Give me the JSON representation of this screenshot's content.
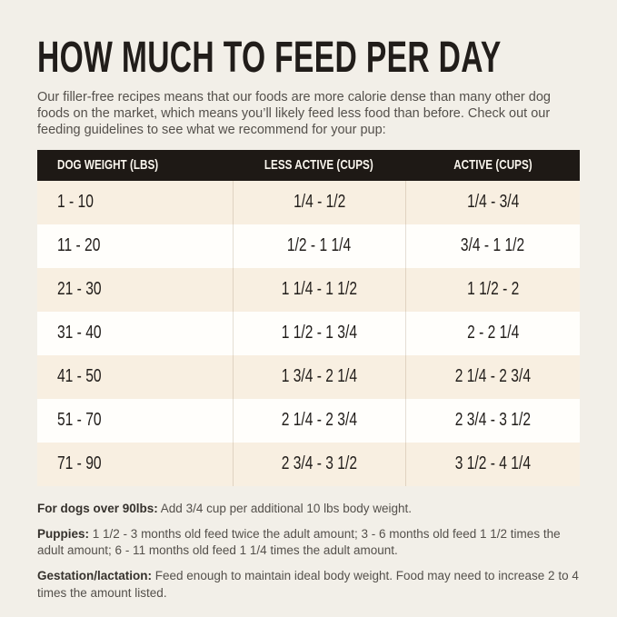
{
  "page": {
    "title": "HOW MUCH TO FEED PER DAY",
    "intro": "Our filler-free recipes means that our foods are more calorie dense than many other dog foods on the market, which means you’ll likely feed less food than before. Check out our feeding guidelines to see what we recommend for your pup:"
  },
  "table": {
    "headers": [
      "DOG WEIGHT (LBS)",
      "LESS ACTIVE (CUPS)",
      "ACTIVE (CUPS)"
    ],
    "rows": [
      {
        "weight": "1 - 10",
        "less_active": "1/4 - 1/2",
        "active": "1/4 - 3/4"
      },
      {
        "weight": "11 - 20",
        "less_active": "1/2 - 1 1/4",
        "active": "3/4 - 1 1/2"
      },
      {
        "weight": "21 - 30",
        "less_active": "1 1/4 - 1 1/2",
        "active": "1 1/2 - 2"
      },
      {
        "weight": "31 - 40",
        "less_active": "1 1/2 - 1 3/4",
        "active": "2 - 2 1/4"
      },
      {
        "weight": "41 - 50",
        "less_active": "1 3/4 - 2 1/4",
        "active": "2 1/4 - 2 3/4"
      },
      {
        "weight": "51 - 70",
        "less_active": "2 1/4 - 2 3/4",
        "active": "2 3/4 - 3 1/2"
      },
      {
        "weight": "71 - 90",
        "less_active": "2 3/4 - 3 1/2",
        "active": "3 1/2 - 4 1/4"
      }
    ]
  },
  "notes": [
    {
      "label": "For dogs over 90lbs:",
      "text": "Add 3/4 cup per additional 10 lbs body weight."
    },
    {
      "label": "Puppies:",
      "text": "1 1/2 - 3 months old feed twice the adult amount; 3 - 6 months old feed 1 1/2 times the adult amount; 6 - 11 months old feed 1 1/4 times the adult amount."
    },
    {
      "label": "Gestation/lactation:",
      "text": "Feed enough to maintain ideal body weight. Food may need to increase 2 to 4 times the amount listed."
    }
  ],
  "colors": {
    "background": "#f2efe8",
    "header_bg": "#1e1915",
    "header_text": "#faf6ee",
    "row_alt": "#f8efe1",
    "row_white": "#fffefb",
    "title_text": "#211d1a",
    "body_text": "#54504b"
  }
}
